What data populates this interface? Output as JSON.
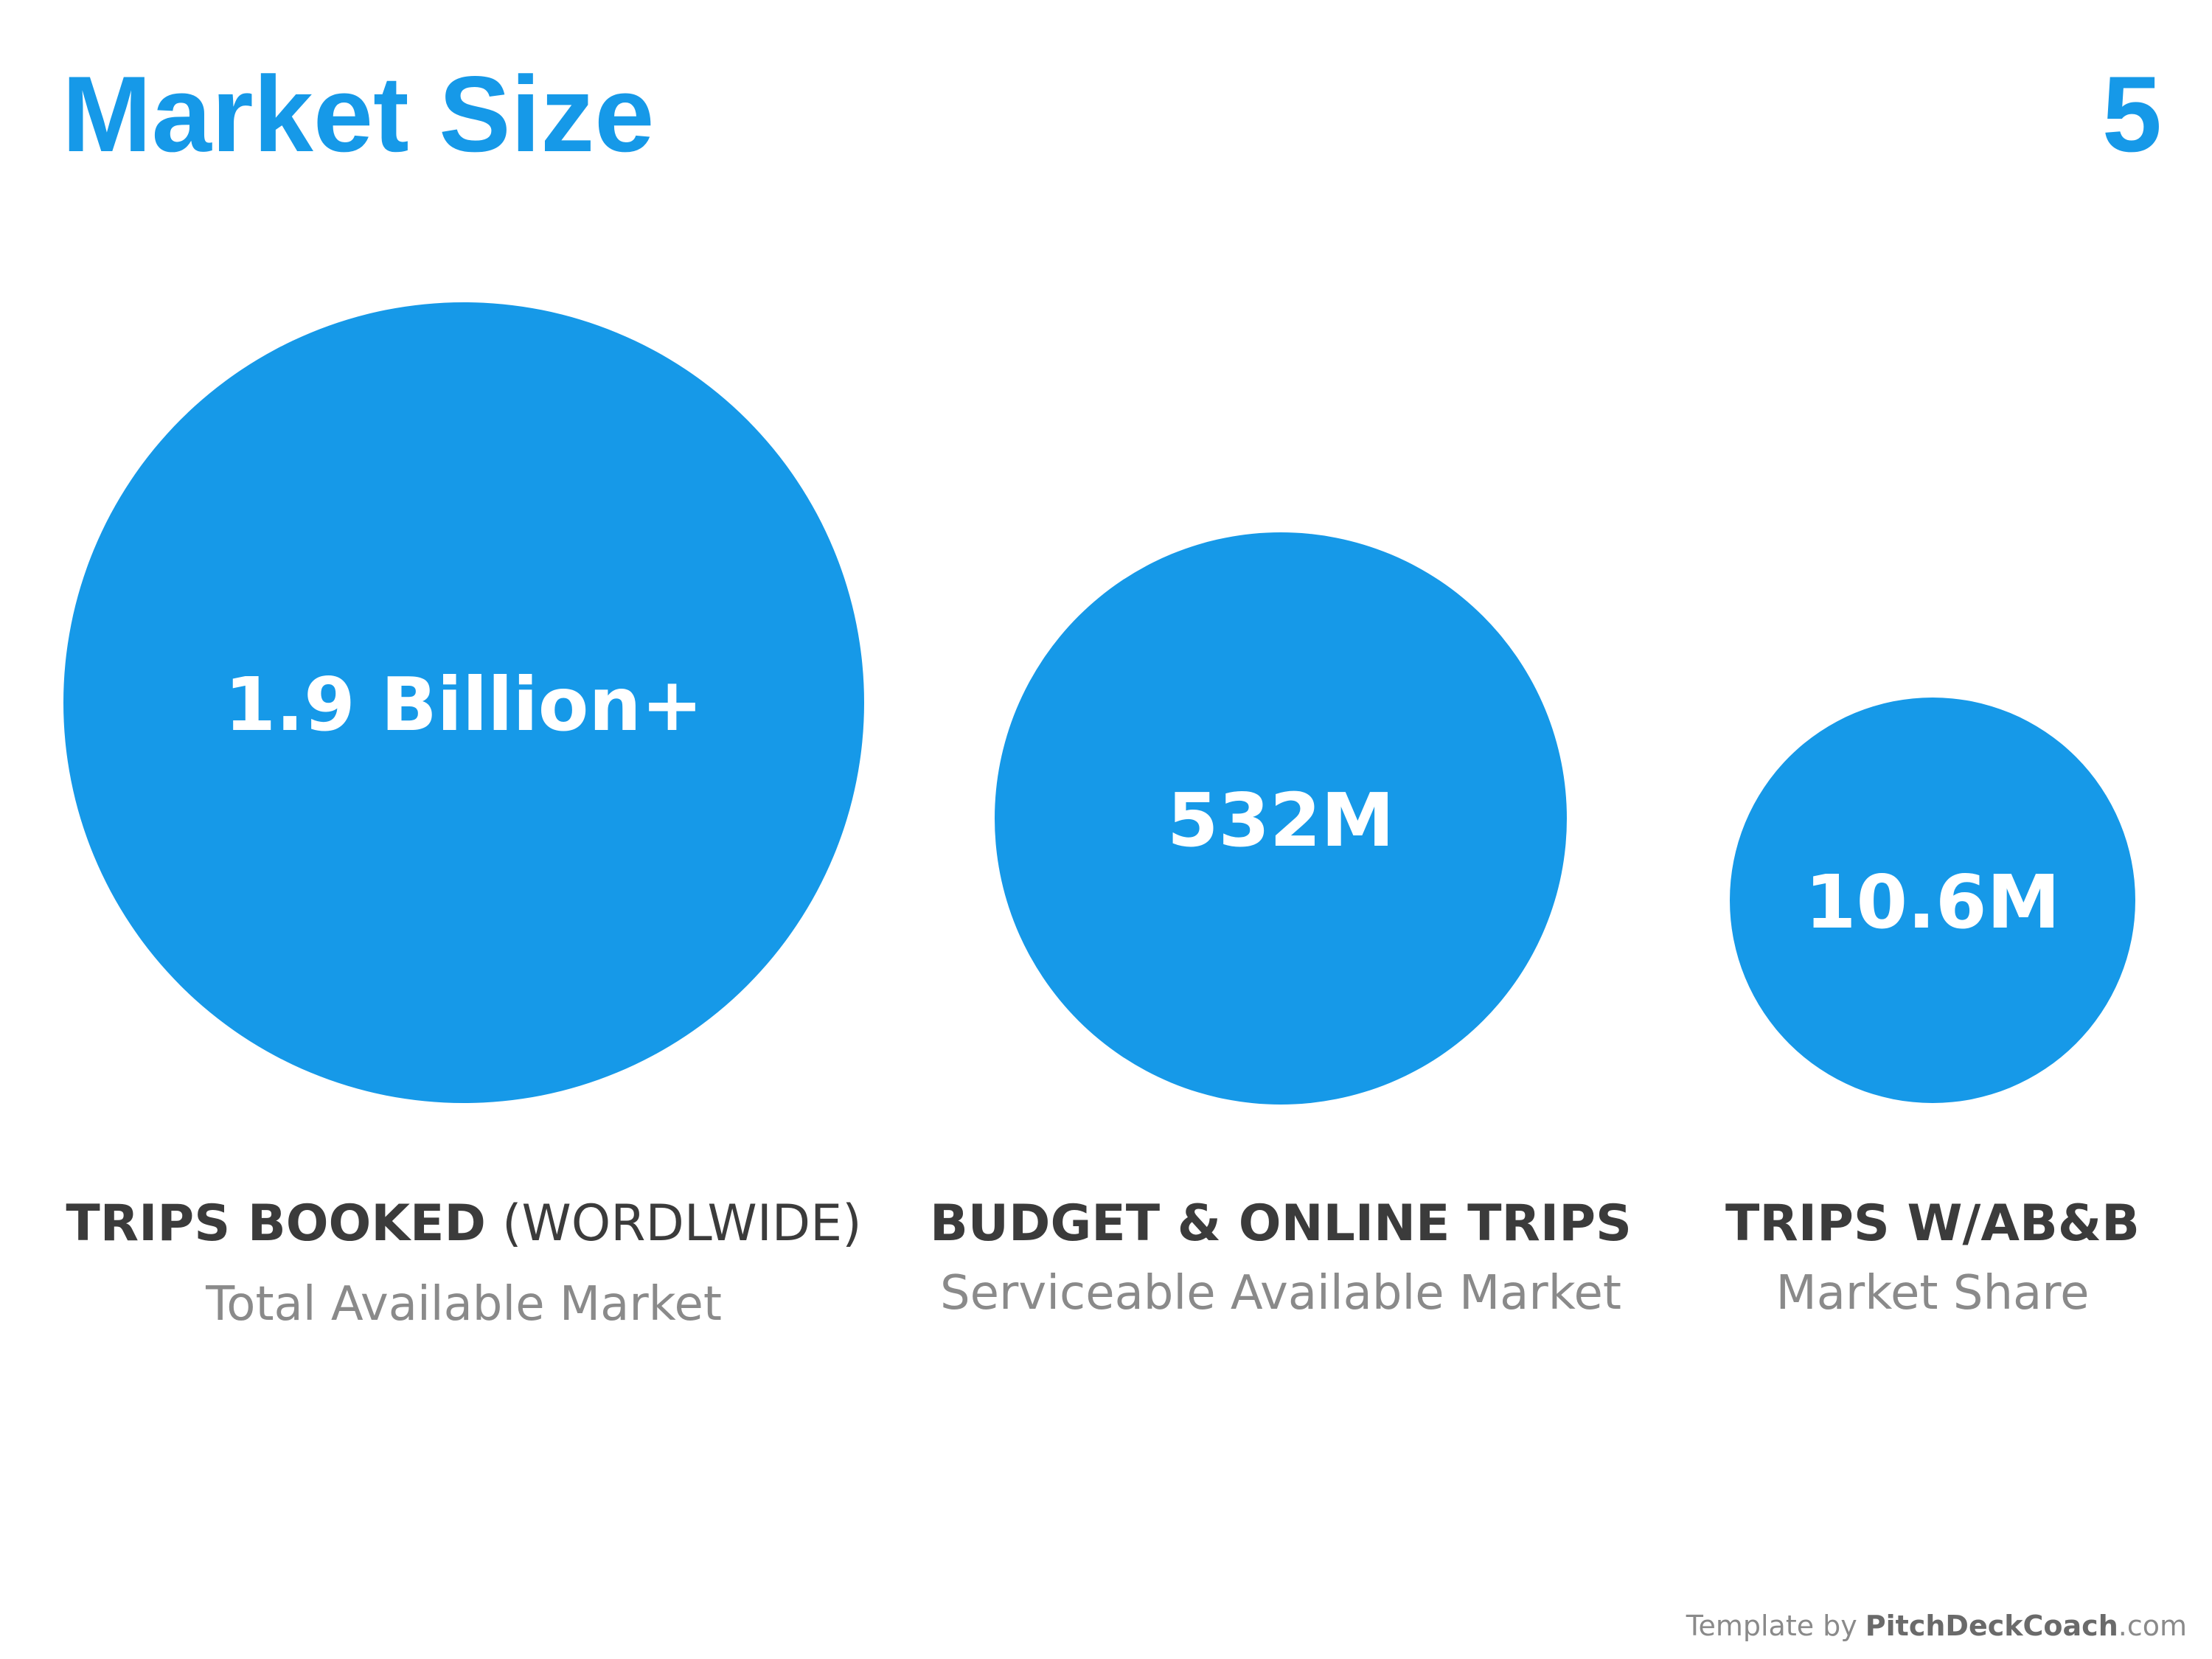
{
  "header": {
    "title": "Market Size",
    "page_number": "5"
  },
  "circles": [
    {
      "value": "1.9 Billion+",
      "label": "TRIPS BOOKED",
      "label_extra": "(WORDLWIDE)",
      "sublabel": "Total Available Market"
    },
    {
      "value": "532M",
      "label": "BUDGET & ONLINE TRIPS",
      "sublabel": "Serviceable Available Market"
    },
    {
      "value": "10.6M",
      "label": "TRIPS W/AB&B",
      "sublabel": "Market Share"
    }
  ],
  "footer": {
    "prefix": "Template by",
    "brand": "PitchDeckCoach",
    "suffix": ".com"
  }
}
